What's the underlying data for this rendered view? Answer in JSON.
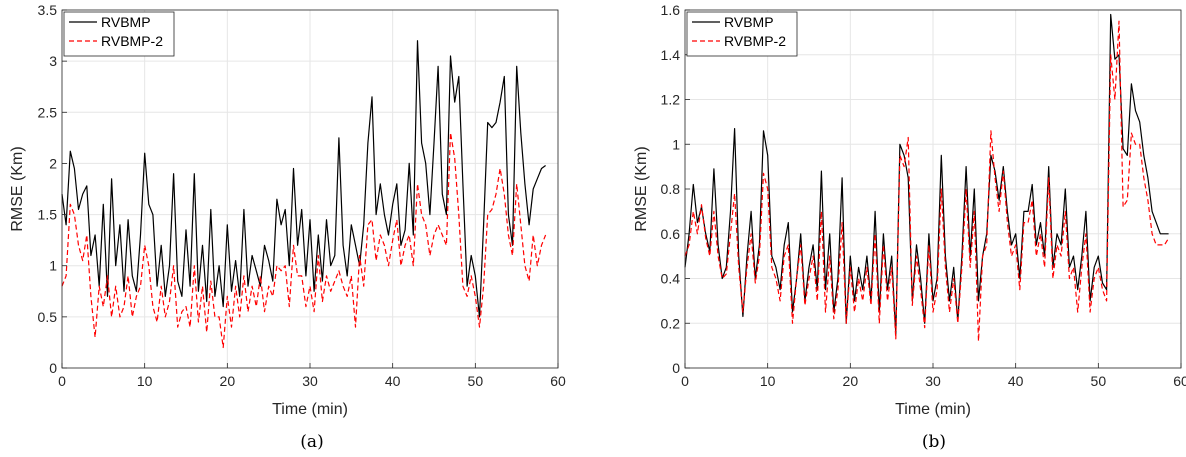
{
  "chart_data": [
    {
      "type": "line",
      "caption": "(a)",
      "xlabel": "Time (min)",
      "ylabel": "RMSE (Km)",
      "xlim": [
        0,
        60
      ],
      "ylim": [
        0,
        3.5
      ],
      "xticks": [
        0,
        10,
        20,
        30,
        40,
        50,
        60
      ],
      "yticks": [
        0,
        0.5,
        1,
        1.5,
        2,
        2.5,
        3,
        3.5
      ],
      "ytick_labels": [
        "0",
        "0.5",
        "1",
        "1.5",
        "2",
        "2.5",
        "3",
        "3.5"
      ],
      "grid": true,
      "legend_position": "top-left",
      "series": [
        {
          "name": "RVBMP",
          "color": "#000000",
          "dash": "solid",
          "x": [
            0,
            0.5,
            1,
            1.5,
            2,
            2.5,
            3,
            3.5,
            4,
            4.5,
            5,
            5.5,
            6,
            6.5,
            7,
            7.5,
            8,
            8.5,
            9,
            9.5,
            10,
            10.5,
            11,
            11.5,
            12,
            12.5,
            13,
            13.5,
            14,
            14.5,
            15,
            15.5,
            16,
            16.5,
            17,
            17.5,
            18,
            18.5,
            19,
            19.5,
            20,
            20.5,
            21,
            21.5,
            22,
            22.5,
            23,
            23.5,
            24,
            24.5,
            25,
            25.5,
            26,
            26.5,
            27,
            27.5,
            28,
            28.5,
            29,
            29.5,
            30,
            30.5,
            31,
            31.5,
            32,
            32.5,
            33,
            33.5,
            34,
            34.5,
            35,
            35.5,
            36,
            36.5,
            37,
            37.5,
            38,
            38.5,
            39,
            39.5,
            40,
            40.5,
            41,
            41.5,
            42,
            42.5,
            43,
            43.5,
            44,
            44.5,
            45,
            45.5,
            46,
            46.5,
            47,
            47.5,
            48,
            48.5,
            49,
            49.5,
            50,
            50.5,
            51,
            51.5,
            52,
            52.5,
            53,
            53.5,
            54,
            54.5,
            55,
            55.5,
            56,
            56.5,
            57,
            57.5,
            58,
            58.5
          ],
          "y": [
            1.7,
            1.4,
            2.12,
            1.95,
            1.55,
            1.7,
            1.78,
            1.1,
            1.3,
            0.8,
            1.6,
            0.7,
            1.85,
            1.0,
            1.4,
            0.75,
            1.45,
            0.9,
            0.75,
            1.3,
            2.1,
            1.6,
            1.5,
            0.8,
            1.2,
            0.7,
            1.0,
            1.9,
            0.85,
            0.7,
            1.35,
            0.8,
            1.9,
            0.75,
            1.2,
            0.65,
            1.55,
            0.7,
            1.0,
            0.6,
            1.4,
            0.75,
            1.05,
            0.7,
            1.55,
            0.8,
            1.1,
            0.95,
            0.8,
            1.2,
            1.05,
            0.85,
            1.65,
            1.4,
            1.55,
            1.0,
            1.95,
            1.2,
            1.55,
            0.9,
            1.45,
            0.75,
            1.3,
            0.85,
            1.45,
            1.0,
            1.1,
            2.25,
            1.2,
            0.9,
            1.4,
            1.2,
            1.0,
            1.4,
            2.2,
            2.65,
            1.5,
            1.8,
            1.5,
            1.3,
            1.6,
            1.8,
            1.2,
            1.35,
            2.0,
            1.3,
            3.2,
            2.2,
            2.0,
            1.5,
            2.2,
            2.95,
            1.7,
            1.5,
            3.05,
            2.6,
            2.85,
            1.8,
            0.8,
            1.1,
            0.9,
            0.5,
            1.4,
            2.4,
            2.35,
            2.4,
            2.6,
            2.85,
            1.5,
            1.2,
            2.95,
            2.3,
            1.8,
            1.4,
            1.75,
            1.85,
            1.95,
            1.98
          ]
        },
        {
          "name": "RVBMP-2",
          "color": "#ff0000",
          "dash": "dashed",
          "x": [
            0,
            0.5,
            1,
            1.5,
            2,
            2.5,
            3,
            3.5,
            4,
            4.5,
            5,
            5.5,
            6,
            6.5,
            7,
            7.5,
            8,
            8.5,
            9,
            9.5,
            10,
            10.5,
            11,
            11.5,
            12,
            12.5,
            13,
            13.5,
            14,
            14.5,
            15,
            15.5,
            16,
            16.5,
            17,
            17.5,
            18,
            18.5,
            19,
            19.5,
            20,
            20.5,
            21,
            21.5,
            22,
            22.5,
            23,
            23.5,
            24,
            24.5,
            25,
            25.5,
            26,
            26.5,
            27,
            27.5,
            28,
            28.5,
            29,
            29.5,
            30,
            30.5,
            31,
            31.5,
            32,
            32.5,
            33,
            33.5,
            34,
            34.5,
            35,
            35.5,
            36,
            36.5,
            37,
            37.5,
            38,
            38.5,
            39,
            39.5,
            40,
            40.5,
            41,
            41.5,
            42,
            42.5,
            43,
            43.5,
            44,
            44.5,
            45,
            45.5,
            46,
            46.5,
            47,
            47.5,
            48,
            48.5,
            49,
            49.5,
            50,
            50.5,
            51,
            51.5,
            52,
            52.5,
            53,
            53.5,
            54,
            54.5,
            55,
            55.5,
            56,
            56.5,
            57,
            57.5,
            58,
            58.5
          ],
          "y": [
            0.8,
            0.9,
            1.6,
            1.5,
            1.2,
            1.05,
            1.3,
            0.7,
            0.3,
            0.8,
            0.6,
            0.9,
            0.5,
            0.8,
            0.5,
            0.6,
            0.9,
            0.5,
            0.7,
            0.8,
            1.2,
            1.0,
            0.6,
            0.45,
            0.8,
            0.5,
            0.65,
            1.0,
            0.4,
            0.55,
            0.6,
            0.4,
            1.0,
            0.45,
            0.8,
            0.35,
            0.85,
            0.5,
            0.5,
            0.2,
            0.7,
            0.4,
            0.8,
            0.5,
            0.9,
            0.55,
            0.8,
            0.6,
            0.9,
            0.55,
            0.8,
            0.7,
            1.0,
            0.95,
            1.0,
            0.6,
            1.2,
            0.9,
            0.9,
            0.6,
            0.8,
            0.55,
            1.1,
            0.65,
            0.9,
            0.75,
            0.85,
            0.95,
            0.8,
            0.7,
            0.9,
            0.4,
            1.1,
            0.8,
            1.4,
            1.45,
            1.05,
            1.3,
            1.2,
            1.0,
            1.25,
            1.45,
            1.0,
            1.2,
            1.3,
            1.0,
            1.8,
            1.5,
            1.4,
            1.1,
            1.3,
            1.4,
            1.3,
            1.2,
            2.3,
            2.05,
            1.5,
            0.8,
            0.7,
            0.9,
            0.7,
            0.4,
            0.8,
            1.5,
            1.55,
            1.7,
            1.95,
            1.7,
            1.3,
            1.1,
            1.8,
            1.4,
            1.0,
            0.85,
            1.3,
            1.0,
            1.2,
            1.3
          ]
        }
      ]
    },
    {
      "type": "line",
      "caption": "(b)",
      "xlabel": "Time (min)",
      "ylabel": "RMSE (Km)",
      "xlim": [
        0,
        60
      ],
      "ylim": [
        0,
        1.6
      ],
      "xticks": [
        0,
        10,
        20,
        30,
        40,
        50,
        60
      ],
      "yticks": [
        0,
        0.2,
        0.4,
        0.6,
        0.8,
        1,
        1.2,
        1.4,
        1.6
      ],
      "ytick_labels": [
        "0",
        "0.2",
        "0.4",
        "0.6",
        "0.8",
        "1",
        "1.2",
        "1.4",
        "1.6"
      ],
      "grid": true,
      "legend_position": "top-right",
      "series": [
        {
          "name": "RVBMP",
          "color": "#000000",
          "dash": "solid",
          "x": [
            0,
            0.5,
            1,
            1.5,
            2,
            2.5,
            3,
            3.5,
            4,
            4.5,
            5,
            5.5,
            6,
            6.5,
            7,
            7.5,
            8,
            8.5,
            9,
            9.5,
            10,
            10.5,
            11,
            11.5,
            12,
            12.5,
            13,
            13.5,
            14,
            14.5,
            15,
            15.5,
            16,
            16.5,
            17,
            17.5,
            18,
            18.5,
            19,
            19.5,
            20,
            20.5,
            21,
            21.5,
            22,
            22.5,
            23,
            23.5,
            24,
            24.5,
            25,
            25.5,
            26,
            26.5,
            27,
            27.5,
            28,
            28.5,
            29,
            29.5,
            30,
            30.5,
            31,
            31.5,
            32,
            32.5,
            33,
            33.5,
            34,
            34.5,
            35,
            35.5,
            36,
            36.5,
            37,
            37.5,
            38,
            38.5,
            39,
            39.5,
            40,
            40.5,
            41,
            41.5,
            42,
            42.5,
            43,
            43.5,
            44,
            44.5,
            45,
            45.5,
            46,
            46.5,
            47,
            47.5,
            48,
            48.5,
            49,
            49.5,
            50,
            50.5,
            51,
            51.5,
            52,
            52.5,
            53,
            53.5,
            54,
            54.5,
            55,
            55.5,
            56,
            56.5,
            57,
            57.5,
            58,
            58.5
          ],
          "y": [
            0.45,
            0.6,
            0.82,
            0.65,
            0.72,
            0.6,
            0.52,
            0.89,
            0.55,
            0.4,
            0.45,
            0.7,
            1.07,
            0.5,
            0.23,
            0.5,
            0.7,
            0.4,
            0.55,
            1.06,
            0.95,
            0.5,
            0.45,
            0.35,
            0.55,
            0.65,
            0.25,
            0.4,
            0.6,
            0.3,
            0.45,
            0.55,
            0.35,
            0.88,
            0.35,
            0.6,
            0.25,
            0.4,
            0.85,
            0.2,
            0.5,
            0.3,
            0.45,
            0.35,
            0.5,
            0.3,
            0.7,
            0.25,
            0.6,
            0.35,
            0.5,
            0.15,
            1.0,
            0.95,
            0.85,
            0.3,
            0.55,
            0.4,
            0.2,
            0.6,
            0.3,
            0.4,
            0.95,
            0.5,
            0.3,
            0.45,
            0.21,
            0.5,
            0.9,
            0.5,
            0.8,
            0.3,
            0.5,
            0.6,
            0.95,
            0.88,
            0.75,
            0.9,
            0.7,
            0.55,
            0.6,
            0.4,
            0.7,
            0.7,
            0.82,
            0.55,
            0.65,
            0.5,
            0.9,
            0.45,
            0.6,
            0.55,
            0.8,
            0.45,
            0.5,
            0.35,
            0.5,
            0.7,
            0.3,
            0.45,
            0.5,
            0.38,
            0.35,
            1.58,
            1.38,
            1.4,
            0.98,
            0.95,
            1.27,
            1.15,
            1.1,
            0.95,
            0.85,
            0.7,
            0.65,
            0.6,
            0.6,
            0.6
          ]
        },
        {
          "name": "RVBMP-2",
          "color": "#ff0000",
          "dash": "dashed",
          "x": [
            0,
            0.5,
            1,
            1.5,
            2,
            2.5,
            3,
            3.5,
            4,
            4.5,
            5,
            5.5,
            6,
            6.5,
            7,
            7.5,
            8,
            8.5,
            9,
            9.5,
            10,
            10.5,
            11,
            11.5,
            12,
            12.5,
            13,
            13.5,
            14,
            14.5,
            15,
            15.5,
            16,
            16.5,
            17,
            17.5,
            18,
            18.5,
            19,
            19.5,
            20,
            20.5,
            21,
            21.5,
            22,
            22.5,
            23,
            23.5,
            24,
            24.5,
            25,
            25.5,
            26,
            26.5,
            27,
            27.5,
            28,
            28.5,
            29,
            29.5,
            30,
            30.5,
            31,
            31.5,
            32,
            32.5,
            33,
            33.5,
            34,
            34.5,
            35,
            35.5,
            36,
            36.5,
            37,
            37.5,
            38,
            38.5,
            39,
            39.5,
            40,
            40.5,
            41,
            41.5,
            42,
            42.5,
            43,
            43.5,
            44,
            44.5,
            45,
            45.5,
            46,
            46.5,
            47,
            47.5,
            48,
            48.5,
            49,
            49.5,
            50,
            50.5,
            51,
            51.5,
            52,
            52.5,
            53,
            53.5,
            54,
            54.5,
            55,
            55.5,
            56,
            56.5,
            57,
            57.5,
            58,
            58.5
          ],
          "y": [
            0.5,
            0.55,
            0.7,
            0.6,
            0.73,
            0.58,
            0.5,
            0.7,
            0.5,
            0.4,
            0.42,
            0.6,
            0.78,
            0.45,
            0.25,
            0.45,
            0.6,
            0.38,
            0.5,
            0.87,
            0.8,
            0.45,
            0.4,
            0.3,
            0.5,
            0.55,
            0.2,
            0.4,
            0.55,
            0.28,
            0.4,
            0.5,
            0.3,
            0.7,
            0.25,
            0.5,
            0.22,
            0.35,
            0.65,
            0.2,
            0.45,
            0.25,
            0.4,
            0.3,
            0.45,
            0.28,
            0.6,
            0.2,
            0.55,
            0.3,
            0.45,
            0.13,
            0.95,
            0.9,
            1.03,
            0.28,
            0.5,
            0.35,
            0.18,
            0.55,
            0.25,
            0.35,
            0.8,
            0.45,
            0.25,
            0.4,
            0.2,
            0.45,
            0.8,
            0.45,
            0.7,
            0.12,
            0.5,
            0.55,
            1.06,
            0.85,
            0.7,
            0.88,
            0.65,
            0.5,
            0.55,
            0.35,
            0.65,
            0.65,
            0.75,
            0.5,
            0.6,
            0.45,
            0.85,
            0.4,
            0.55,
            0.5,
            0.7,
            0.4,
            0.45,
            0.25,
            0.45,
            0.6,
            0.25,
            0.4,
            0.45,
            0.35,
            0.3,
            1.4,
            1.2,
            1.55,
            0.72,
            0.75,
            1.05,
            1.0,
            1.0,
            0.85,
            0.75,
            0.6,
            0.55,
            0.55,
            0.55,
            0.58
          ]
        }
      ]
    }
  ]
}
